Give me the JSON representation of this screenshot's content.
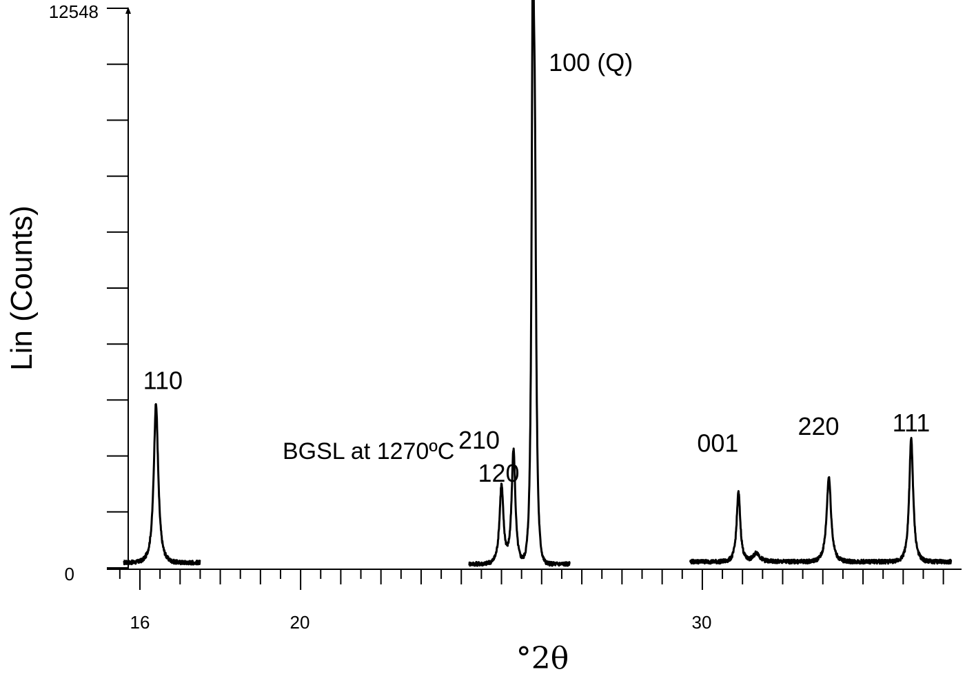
{
  "chart_data": {
    "type": "line",
    "title": "",
    "xlabel": "°2θ",
    "ylabel": "Lin (Counts)",
    "xlim": [
      15.5,
      36.3
    ],
    "ylim": [
      0,
      12548
    ],
    "x_ticks": [
      16,
      20,
      30
    ],
    "x_tick_labels": [
      "16",
      "20",
      "30"
    ],
    "y_tick_labels": [
      "0",
      "12548"
    ],
    "annotation": "BGSL at 1270ºC",
    "peaks": [
      {
        "label": "110",
        "x": 16.4,
        "y": 3550
      },
      {
        "label": "120",
        "x": 25.0,
        "y": 1750
      },
      {
        "label": "210",
        "x": 25.3,
        "y": 2550
      },
      {
        "label": "100 (Q)",
        "x": 25.8,
        "y": 11300
      },
      {
        "label": "001",
        "x": 30.9,
        "y": 1550
      },
      {
        "label": "220",
        "x": 33.15,
        "y": 1900
      },
      {
        "label": "111",
        "x": 35.2,
        "y": 2750
      }
    ],
    "segments": [
      {
        "x_range": [
          15.6,
          17.5
        ],
        "baseline": 120
      },
      {
        "x_range": [
          24.2,
          26.7
        ],
        "baseline": 90
      },
      {
        "x_range": [
          29.7,
          36.2
        ],
        "baseline": 140
      }
    ],
    "grid": false,
    "legend": "none"
  }
}
